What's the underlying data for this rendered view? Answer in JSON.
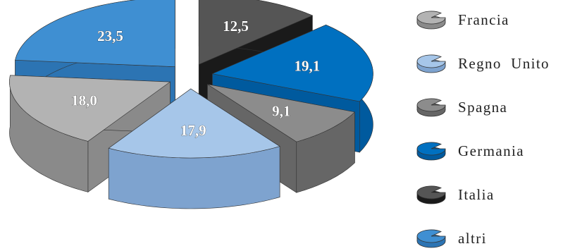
{
  "chart_data": {
    "type": "pie",
    "title": "",
    "categories": [
      "Francia",
      "Regno Unito",
      "Spagna",
      "Germania",
      "Italia",
      "altri"
    ],
    "values": [
      18.0,
      17.9,
      9.1,
      19.1,
      12.5,
      23.5
    ],
    "data_labels": [
      "18,0",
      "17,9",
      "9,1",
      "19,1",
      "12,5",
      "23,5"
    ],
    "legend_labels": [
      "Francia",
      "Regno  Unito",
      "Spagna",
      "Germania",
      "Italia",
      "altri"
    ],
    "colors": [
      "#b3b3b3",
      "#a6c6e9",
      "#8c8c8c",
      "#0070c0",
      "#555555",
      "#3f8fd2"
    ],
    "side_colors": [
      "#8a8a8a",
      "#7ea3cf",
      "#666666",
      "#005a9e",
      "#1a1a1a",
      "#2c74b3"
    ],
    "exploded": true,
    "three_d": true,
    "legend_position": "right"
  }
}
